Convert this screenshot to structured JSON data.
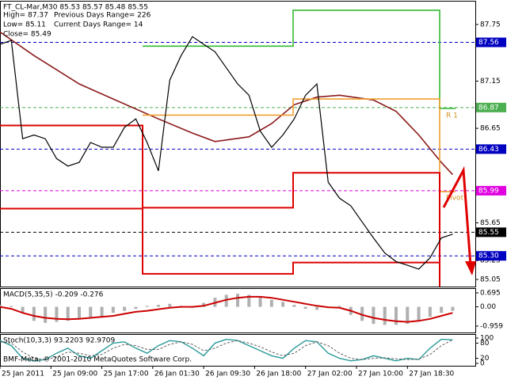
{
  "chart_data": [
    {
      "type": "line",
      "title": "FT_CL-Mar,M30  85.53 85.57 85.48 85.55",
      "info": [
        "High= 87.37",
        "Previous Days Range= 226",
        "Low= 85.11",
        "Current Days Range= 14",
        "Close= 85.49"
      ],
      "annotations": [
        "R 1",
        "Pivot"
      ],
      "xlim": [
        0,
        42
      ],
      "ylim": [
        84.975,
        88.0
      ],
      "yticks": [
        87.75,
        87.15,
        86.65,
        85.65,
        85.25,
        85.05
      ],
      "levels": [
        {
          "value": 87.56,
          "color": "#0000c0"
        },
        {
          "value": 86.87,
          "color": "#4caf50"
        },
        {
          "value": 86.43,
          "color": "#0000c0"
        },
        {
          "value": 85.99,
          "color": "#e000e0"
        },
        {
          "value": 85.55,
          "color": "#000000"
        },
        {
          "value": 85.3,
          "label": "85.30",
          "color": "#0000c0"
        }
      ],
      "series": [
        {
          "color": "#8b1a1a",
          "width": 1.6,
          "x": [
            0,
            3,
            7,
            10,
            14,
            17,
            19,
            22,
            24,
            26,
            28,
            30,
            33,
            35,
            37,
            39,
            40
          ],
          "values": [
            87.67,
            87.42,
            87.12,
            86.96,
            86.75,
            86.6,
            86.51,
            86.56,
            86.7,
            86.9,
            86.98,
            87.0,
            86.95,
            86.83,
            86.58,
            86.29,
            86.16
          ]
        },
        {
          "color": "#33bb33",
          "width": 1.6,
          "x": [
            12.6,
            25.9,
            25.9,
            38.85,
            38.85,
            40.25
          ],
          "values": [
            87.52,
            87.52,
            87.9,
            87.9,
            86.86,
            86.86
          ]
        },
        {
          "color": "#f0a030",
          "width": 1.6,
          "x": [
            12.6,
            25.9,
            25.9,
            38.85,
            38.85,
            40.25
          ],
          "values": [
            86.79,
            86.79,
            86.96,
            86.96,
            85.98,
            85.98
          ]
        },
        {
          "color": "#dd0000",
          "width": 2,
          "x": [
            0,
            12.6,
            12.6,
            25.9,
            25.9,
            38.85,
            38.85
          ],
          "values": [
            86.68,
            86.68,
            85.81,
            85.81,
            86.18,
            86.18,
            84.975
          ]
        },
        {
          "color": "#dd0000",
          "width": 2,
          "x": [
            0,
            12.6,
            12.6,
            25.9,
            25.9,
            38.85
          ],
          "values": [
            85.8,
            85.8,
            85.11,
            85.11,
            85.23,
            85.23
          ]
        },
        {
          "color": "#000000",
          "width": 1.2,
          "values": [
            87.54,
            87.58,
            86.54,
            86.58,
            86.54,
            86.33,
            86.25,
            86.29,
            86.5,
            86.45,
            86.45,
            86.66,
            86.75,
            86.5,
            86.2,
            87.16,
            87.42,
            87.62,
            87.54,
            87.46,
            87.29,
            87.12,
            87.0,
            86.62,
            86.45,
            86.58,
            86.75,
            87.0,
            87.12,
            86.08,
            85.91,
            85.83,
            85.66,
            85.49,
            85.33,
            85.24,
            85.2,
            85.16,
            85.28,
            85.49,
            85.53
          ]
        }
      ]
    },
    {
      "type": "line",
      "title": "MACD(5,35,5) -0.209 -0.276",
      "xlim": [
        0,
        42
      ],
      "ylim": [
        -1.28,
        0.93
      ],
      "yticks": [
        0.695,
        {
          "value": 0,
          "label": "0.00"
        },
        -0.959
      ],
      "series": [
        {
          "style": "histogram",
          "color": "#b0b0b0",
          "values": [
            0.1,
            0.05,
            -0.3,
            -0.7,
            -0.8,
            -0.75,
            -0.7,
            -0.6,
            -0.55,
            -0.5,
            -0.3,
            -0.2,
            -0.1,
            0.05,
            0.1,
            0.15,
            0.05,
            -0.05,
            0.2,
            0.45,
            0.6,
            0.65,
            0.6,
            0.5,
            0.35,
            0.25,
            0.1,
            -0.1,
            -0.15,
            -0.05,
            0.05,
            -0.4,
            -0.7,
            -0.85,
            -0.9,
            -0.9,
            -0.85,
            -0.7,
            -0.5,
            -0.3,
            -0.2
          ]
        },
        {
          "color": "#cc0000",
          "width": 2,
          "values": [
            0,
            -0.1,
            -0.3,
            -0.45,
            -0.55,
            -0.6,
            -0.62,
            -0.6,
            -0.55,
            -0.5,
            -0.45,
            -0.35,
            -0.25,
            -0.2,
            -0.12,
            -0.05,
            0,
            0,
            0.05,
            0.2,
            0.35,
            0.45,
            0.5,
            0.5,
            0.45,
            0.35,
            0.25,
            0.15,
            0.05,
            -0.02,
            -0.05,
            -0.2,
            -0.4,
            -0.55,
            -0.65,
            -0.72,
            -0.75,
            -0.7,
            -0.6,
            -0.45,
            -0.3
          ]
        }
      ]
    },
    {
      "type": "line",
      "title": "Stoch(10,3,3) 93.2203 92.9709",
      "footer": "BMF-Meta, © 2001-2010 MetaQuotes Software Corp.",
      "xlim": [
        0,
        42
      ],
      "ylim": [
        -9.4,
        115.6
      ],
      "yticks": [
        100,
        80,
        20,
        0
      ],
      "xticks": [
        {
          "value": 0,
          "label": "25 Jan 2011"
        },
        {
          "value": 4.5,
          "label": "25 Jan 09:00"
        },
        {
          "value": 9,
          "label": "25 Jan 17:00"
        },
        {
          "value": 13.5,
          "label": "26 Jan 01:30"
        },
        {
          "value": 18,
          "label": "26 Jan 09:30"
        },
        {
          "value": 22.5,
          "label": "26 Jan 18:00"
        },
        {
          "value": 27,
          "label": "27 Jan 02:00"
        },
        {
          "value": 31.5,
          "label": "27 Jan 10:00"
        },
        {
          "value": 36,
          "label": "27 Jan 18:30"
        }
      ],
      "series": [
        {
          "color": "#2a9a9a",
          "width": 1.4,
          "values": [
            90,
            70,
            20,
            10,
            15,
            40,
            60,
            30,
            20,
            50,
            80,
            85,
            60,
            40,
            70,
            90,
            85,
            60,
            30,
            80,
            95,
            90,
            70,
            50,
            30,
            20,
            60,
            90,
            85,
            40,
            20,
            10,
            15,
            30,
            20,
            10,
            20,
            15,
            60,
            95,
            93
          ]
        },
        {
          "color": "#606060",
          "width": 1,
          "dash": true,
          "values": [
            85,
            80,
            45,
            20,
            15,
            25,
            45,
            40,
            30,
            35,
            60,
            75,
            70,
            55,
            55,
            75,
            85,
            75,
            50,
            60,
            80,
            90,
            80,
            65,
            45,
            30,
            40,
            70,
            85,
            70,
            40,
            20,
            15,
            20,
            22,
            18,
            15,
            17,
            35,
            70,
            93
          ]
        }
      ]
    }
  ]
}
